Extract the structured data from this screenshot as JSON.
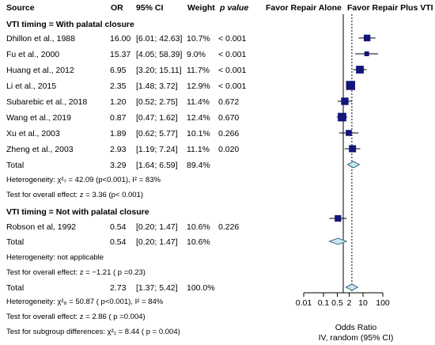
{
  "header": {
    "source": "Source",
    "or": "OR",
    "ci": "95% CI",
    "weight": "Weight",
    "pvalue": "p value",
    "favor_left": "Favor Repair Alone",
    "favor_right": "Favor Repair Plus VTI"
  },
  "groups": [
    {
      "title": "VTI timing = With palatal closure",
      "studies": [
        {
          "name": "Dhillon et al., 1988",
          "or": "16.00",
          "ci": "[6.01; 42.63]",
          "weight": "10.7%",
          "p": "< 0.001"
        },
        {
          "name": "Fu et al., 2000",
          "or": "15.37",
          "ci": "[4.05; 58.39]",
          "weight": "9.0%",
          "p": "< 0.001"
        },
        {
          "name": "Huang et al., 2012",
          "or": "6.95",
          "ci": "[3.20; 15.11]",
          "weight": "11.7%",
          "p": "< 0.001"
        },
        {
          "name": "Li et al., 2015",
          "or": "2.35",
          "ci": "[1.48; 3.72]",
          "weight": "12.9%",
          "p": "< 0.001"
        },
        {
          "name": "Subarebic et al., 2018",
          "or": "1.20",
          "ci": "[0.52; 2.75]",
          "weight": "11.4%",
          "p": "0.672"
        },
        {
          "name": "Wang et al., 2019",
          "or": "0.87",
          "ci": "[0.47; 1.62]",
          "weight": "12.4%",
          "p": "0.670"
        },
        {
          "name": "Xu et al., 2003",
          "or": "1.89",
          "ci": "[0.62; 5.77]",
          "weight": "10.1%",
          "p": "0.266"
        },
        {
          "name": "Zheng et al., 2003",
          "or": "2.93",
          "ci": "[1.19; 7.24]",
          "weight": "11.1%",
          "p": "0.020"
        }
      ],
      "total": {
        "label": "Total",
        "or": "3.29",
        "ci": "[1.64; 6.59]",
        "weight": "89.4%"
      },
      "heterogeneity": "Heterogeneity: χ²₇ = 42.09 (p<0.001), I² = 83%",
      "overall": "Test for overall effect: z = 3.36 (p< 0.001)"
    },
    {
      "title": "VTI timing = Not with palatal closure",
      "studies": [
        {
          "name": "Robson et al, 1992",
          "or": "0.54",
          "ci": "[0.20; 1.47]",
          "weight": "10.6%",
          "p": "0.226"
        }
      ],
      "total": {
        "label": "Total",
        "or": "0.54",
        "ci": "[0.20; 1.47]",
        "weight": "10.6%"
      },
      "heterogeneity": "Heterogeneity: not applicable",
      "overall": "Test for overall effect: z = −1.21 ( p =0.23)"
    }
  ],
  "overall_total": {
    "label": "Total",
    "or": "2.73",
    "ci": "[1.37; 5.42]",
    "weight": "100.0%"
  },
  "overall_heterogeneity": "Heterogeneity: χ²₈ = 50.87 ( p<0.001), I² = 84%",
  "overall_effect": "Test for overall effect: z = 2.86 ( p =0.004)",
  "subgroup_test": "Test for subgroup differences: χ²₁ = 8.44 ( p = 0.004)",
  "axis": {
    "title_line1": "Odds Ratio",
    "title_line2": "IV, random (95% CI)"
  },
  "chart_data": {
    "type": "scatter",
    "subtype": "forest",
    "x_scale": "log",
    "xlim": [
      0.01,
      100
    ],
    "ticks": [
      0.01,
      0.1,
      0.5,
      2,
      10,
      100
    ],
    "tick_labels": [
      "0.01",
      "0.1",
      "0.5",
      "2",
      "10",
      "100"
    ],
    "reference_line": 1,
    "pooled_line": 2.73,
    "studies": [
      {
        "or": 16.0,
        "lo": 6.01,
        "hi": 42.63,
        "w": 10.7
      },
      {
        "or": 15.37,
        "lo": 4.05,
        "hi": 58.39,
        "w": 9.0
      },
      {
        "or": 6.95,
        "lo": 3.2,
        "hi": 15.11,
        "w": 11.7
      },
      {
        "or": 2.35,
        "lo": 1.48,
        "hi": 3.72,
        "w": 12.9
      },
      {
        "or": 1.2,
        "lo": 0.52,
        "hi": 2.75,
        "w": 11.4
      },
      {
        "or": 0.87,
        "lo": 0.47,
        "hi": 1.62,
        "w": 12.4
      },
      {
        "or": 1.89,
        "lo": 0.62,
        "hi": 5.77,
        "w": 10.1
      },
      {
        "or": 2.93,
        "lo": 1.19,
        "hi": 7.24,
        "w": 11.1
      },
      {
        "or": 0.54,
        "lo": 0.2,
        "hi": 1.47,
        "w": 10.6
      }
    ],
    "diamonds": [
      {
        "or": 3.29,
        "lo": 1.64,
        "hi": 6.59
      },
      {
        "or": 0.54,
        "lo": 0.2,
        "hi": 1.47
      },
      {
        "or": 2.73,
        "lo": 1.37,
        "hi": 5.42
      }
    ]
  }
}
